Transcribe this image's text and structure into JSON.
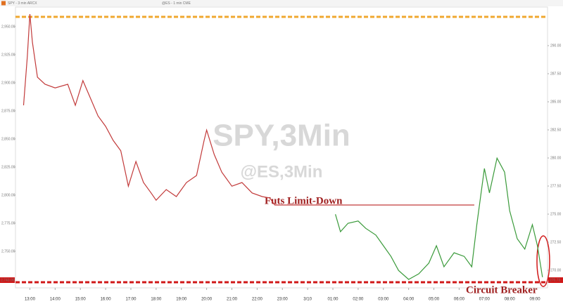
{
  "chart_data": {
    "type": "line",
    "header_items": [
      "SPY - 3 min  ARCX",
      "@ES - 1 min  CME"
    ],
    "watermark": "SPY,3Min",
    "watermark_sub": "@ES,3Min",
    "annotations": [
      "Futs Limit-Down",
      "Circuit Breaker"
    ],
    "last_labels": {
      "left": "2,743.00",
      "right": "275.73"
    },
    "grid": false,
    "xlim": [
      12.43,
      33.5
    ],
    "xticks": [
      {
        "value": 13,
        "label": "13:00"
      },
      {
        "value": 14,
        "label": "14:00"
      },
      {
        "value": 15,
        "label": "15:00"
      },
      {
        "value": 16,
        "label": "16:00"
      },
      {
        "value": 17,
        "label": "17:00"
      },
      {
        "value": 18,
        "label": "18:00"
      },
      {
        "value": 19,
        "label": "19:00"
      },
      {
        "value": 20,
        "label": "20:00"
      },
      {
        "value": 21,
        "label": "21:00"
      },
      {
        "value": 22,
        "label": "22:00"
      },
      {
        "value": 23,
        "label": "23:00"
      },
      {
        "value": 24,
        "label": "3/10"
      },
      {
        "value": 25,
        "label": "01:00"
      },
      {
        "value": 26,
        "label": "02:00"
      },
      {
        "value": 27,
        "label": "03:00"
      },
      {
        "value": 28,
        "label": "04:00"
      },
      {
        "value": 29,
        "label": "05:00"
      },
      {
        "value": 30,
        "label": "06:00"
      },
      {
        "value": 31,
        "label": "07:00"
      },
      {
        "value": 32,
        "label": "08:00"
      },
      {
        "value": 33,
        "label": "09:00"
      }
    ],
    "ylim": [
      2717.5,
      2967.5
    ],
    "yticks": [
      {
        "value": 2750,
        "label": "2,750.00"
      },
      {
        "value": 2775,
        "label": "2,775.00"
      },
      {
        "value": 2800,
        "label": "2,800.00"
      },
      {
        "value": 2825,
        "label": "2,825.00"
      },
      {
        "value": 2850,
        "label": "2,850.00"
      },
      {
        "value": 2875,
        "label": "2,875.00"
      },
      {
        "value": 2900,
        "label": "2,900.00"
      },
      {
        "value": 2925,
        "label": "2,925.00"
      },
      {
        "value": 2950,
        "label": "2,950.00"
      }
    ],
    "y2lim": [
      268.4375,
      293.4375
    ],
    "y2ticks": [
      {
        "value": 270,
        "label": "270.00"
      },
      {
        "value": 272.5,
        "label": "272.50"
      },
      {
        "value": 275,
        "label": "275.00"
      },
      {
        "value": 277.5,
        "label": "277.50"
      },
      {
        "value": 280,
        "label": "280.00"
      },
      {
        "value": 282.5,
        "label": "282.50"
      },
      {
        "value": 285,
        "label": "285.00"
      },
      {
        "value": 287.5,
        "label": "287.50"
      },
      {
        "value": 290,
        "label": "290.00"
      }
    ],
    "hlines": [
      {
        "value": 2958.75,
        "color": "#f0a830"
      },
      {
        "value": 2722.5,
        "color": "#d01818"
      }
    ],
    "series": [
      {
        "name": "@ES",
        "color": "#c23a3a",
        "x": [
          12.75,
          12.9,
          13.0,
          13.1,
          13.3,
          13.6,
          14.0,
          14.5,
          14.8,
          15.1,
          15.4,
          15.7,
          16.0,
          16.3,
          16.6,
          16.9,
          17.2,
          17.5,
          17.8,
          18.0,
          18.4,
          18.8,
          19.2,
          19.6,
          19.9,
          20.0,
          20.3,
          20.6,
          21.0,
          21.4,
          21.8,
          22.2,
          22.5,
          22.7,
          30.6
        ],
        "values": [
          2880,
          2923.75,
          2961.25,
          2936.25,
          2905,
          2898.75,
          2895.5,
          2898.75,
          2880,
          2902,
          2886.25,
          2870.5,
          2861.25,
          2848.75,
          2839.5,
          2808,
          2830,
          2811.25,
          2802,
          2795.5,
          2805,
          2798.75,
          2811.25,
          2817.5,
          2848.75,
          2858,
          2836.25,
          2820.5,
          2808,
          2811.25,
          2802,
          2798.75,
          2797.5,
          2791.25,
          2791.25
        ]
      },
      {
        "name": "SPY",
        "color": "#3a9a3a",
        "x": [
          25.1,
          25.3,
          25.6,
          26.0,
          26.3,
          26.7,
          27.0,
          27.3,
          27.6,
          28.0,
          28.4,
          28.8,
          29.1,
          29.4,
          29.8,
          30.2,
          30.5,
          30.7,
          31.0,
          31.2,
          31.5,
          31.8,
          32.0,
          32.3,
          32.6,
          32.9,
          33.1,
          33.3
        ],
        "values": [
          2783,
          2767.5,
          2775,
          2777,
          2770.5,
          2764.5,
          2755,
          2745.5,
          2733,
          2725,
          2730,
          2739.5,
          2755,
          2736.25,
          2748.75,
          2745.5,
          2736.25,
          2773.75,
          2823.75,
          2802,
          2833,
          2820.5,
          2786.25,
          2761.25,
          2752,
          2773.75,
          2755,
          2727
        ]
      }
    ]
  }
}
